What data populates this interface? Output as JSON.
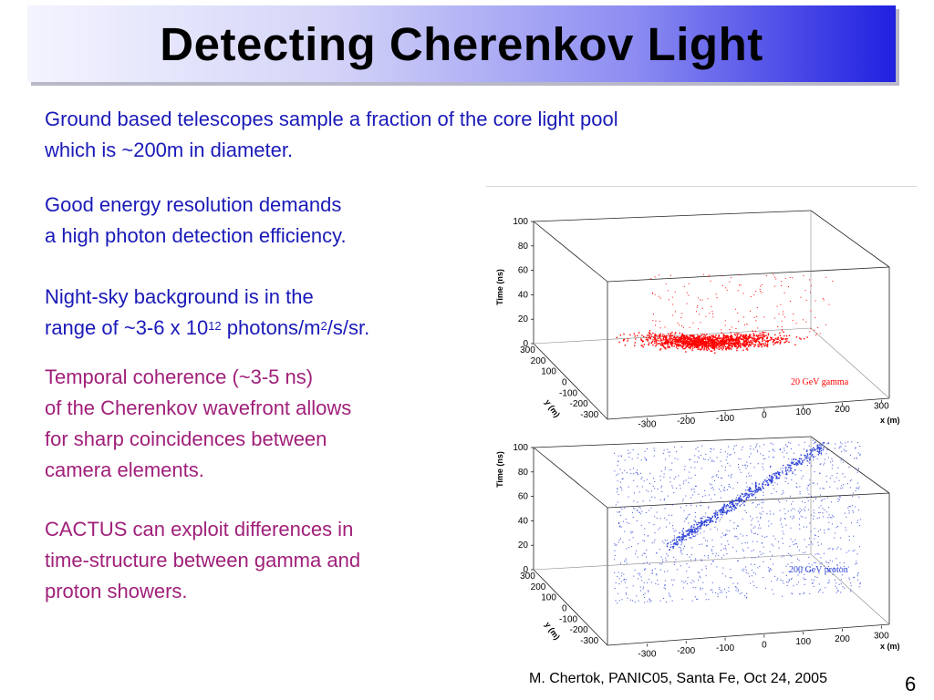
{
  "title": "Detecting Cherenkov Light",
  "paragraphs": {
    "p1": [
      "Ground based telescopes sample a fraction of the core light pool",
      "which is ~200m in diameter."
    ],
    "p2": [
      "Good energy resolution demands",
      "a high photon detection efficiency."
    ],
    "p3": {
      "line1": "Night-sky background is in the",
      "line2_a": "range of ~3-6 x 10",
      "line2_sup1": "12",
      "line2_b": " photons/m",
      "line2_sup2": "2",
      "line2_c": "/s/sr."
    },
    "p4": [
      "Temporal coherence (~3-5 ns)",
      "of the Cherenkov wavefront allows",
      "for sharp coincidences between",
      "camera elements."
    ],
    "p5": [
      "CACTUS can exploit differences in",
      "time-structure  between gamma and",
      "proton showers."
    ]
  },
  "colors": {
    "text_blue": "#1a1ab8",
    "text_purple": "#a0207a",
    "gamma_red": "#ff0000",
    "proton_blue": "#2a3fd6"
  },
  "chart_data": [
    {
      "type": "scatter",
      "title": "",
      "legend": "20 GeV gamma",
      "xlabel": "x (m)",
      "ylabel": "y (m)",
      "zlabel": "Time (ns)",
      "x_ticks": [
        "-300",
        "-200",
        "-100",
        "0",
        "100",
        "200",
        "300"
      ],
      "y_ticks": [
        "300",
        "200",
        "100",
        "0",
        "-100",
        "-200",
        "-300"
      ],
      "z_ticks": [
        "100",
        "80",
        "60",
        "40",
        "20",
        "0"
      ],
      "color": "#ff0000"
    },
    {
      "type": "scatter",
      "title": "",
      "legend": "200 GeV proton",
      "xlabel": "x (m)",
      "ylabel": "y (m)",
      "zlabel": "Time (ns)",
      "x_ticks": [
        "-300",
        "-200",
        "-100",
        "0",
        "100",
        "200",
        "300"
      ],
      "y_ticks": [
        "300",
        "200",
        "100",
        "0",
        "-100",
        "-200",
        "-300"
      ],
      "z_ticks": [
        "100",
        "80",
        "60",
        "40",
        "20",
        "0"
      ],
      "color": "#2a3fd6"
    }
  ],
  "footer": "M. Chertok, PANIC05, Santa Fe, Oct 24, 2005",
  "page_number": "6"
}
